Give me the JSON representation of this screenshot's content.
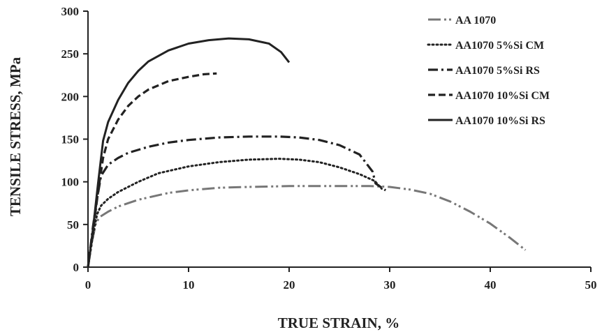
{
  "chart_data": {
    "type": "line",
    "xlabel": "TRUE STRAIN, %",
    "ylabel": "TENSILE STRESS, MPa",
    "xlim": [
      0,
      50
    ],
    "ylim": [
      0,
      300
    ],
    "xticks": [
      0,
      10,
      20,
      30,
      40,
      50
    ],
    "yticks": [
      0,
      50,
      100,
      150,
      200,
      250,
      300
    ],
    "grid": false,
    "legend_position": "top-right",
    "series": [
      {
        "name": "AA 1070",
        "style": "long-dash-dot-dot",
        "color": "#777777",
        "x": [
          0,
          0.4,
          0.8,
          1.2,
          2,
          3,
          5,
          8,
          10,
          13,
          16,
          20,
          24,
          28,
          30,
          32,
          34,
          36,
          38,
          40,
          42,
          43.5
        ],
        "y": [
          0,
          30,
          52,
          59,
          65,
          71,
          79,
          87,
          90,
          93,
          94,
          95,
          95,
          95,
          94,
          91,
          86,
          77,
          65,
          51,
          34,
          20
        ]
      },
      {
        "name": "AA1070 5%Si CM",
        "style": "dotted",
        "color": "#222222",
        "x": [
          0,
          0.5,
          0.9,
          1.3,
          2,
          3,
          5,
          7,
          10,
          13,
          16,
          19,
          21,
          23,
          25,
          27,
          28.5,
          29.2
        ],
        "y": [
          0,
          38,
          62,
          72,
          80,
          88,
          100,
          110,
          118,
          123,
          126,
          127,
          126,
          123,
          117,
          109,
          101,
          92
        ]
      },
      {
        "name": "AA1070 5%Si RS",
        "style": "dash-dot",
        "color": "#222222",
        "x": [
          0,
          0.5,
          0.9,
          1.3,
          2,
          3,
          4,
          6,
          8,
          10,
          13,
          16,
          19,
          21,
          23,
          25,
          27,
          28.3,
          28.6,
          29.6
        ],
        "y": [
          0,
          48,
          80,
          107,
          120,
          128,
          134,
          141,
          146,
          149,
          152,
          153,
          153,
          152,
          149,
          143,
          132,
          112,
          98,
          90
        ]
      },
      {
        "name": "AA1070 10%Si CM",
        "style": "dashed",
        "color": "#222222",
        "x": [
          0,
          0.5,
          1,
          1.5,
          2,
          3,
          4,
          5,
          6,
          8,
          10,
          11.5,
          12.8
        ],
        "y": [
          0,
          42,
          88,
          128,
          150,
          173,
          189,
          200,
          208,
          218,
          223,
          226,
          227
        ]
      },
      {
        "name": "AA1070 10%Si RS",
        "style": "solid",
        "color": "#222222",
        "x": [
          0,
          0.5,
          1,
          1.5,
          2,
          3,
          4,
          5,
          6,
          8,
          10,
          12,
          14,
          16,
          18,
          19.2,
          20
        ],
        "y": [
          0,
          45,
          98,
          148,
          170,
          196,
          216,
          230,
          241,
          254,
          262,
          266,
          268,
          267,
          262,
          252,
          240
        ]
      }
    ]
  }
}
